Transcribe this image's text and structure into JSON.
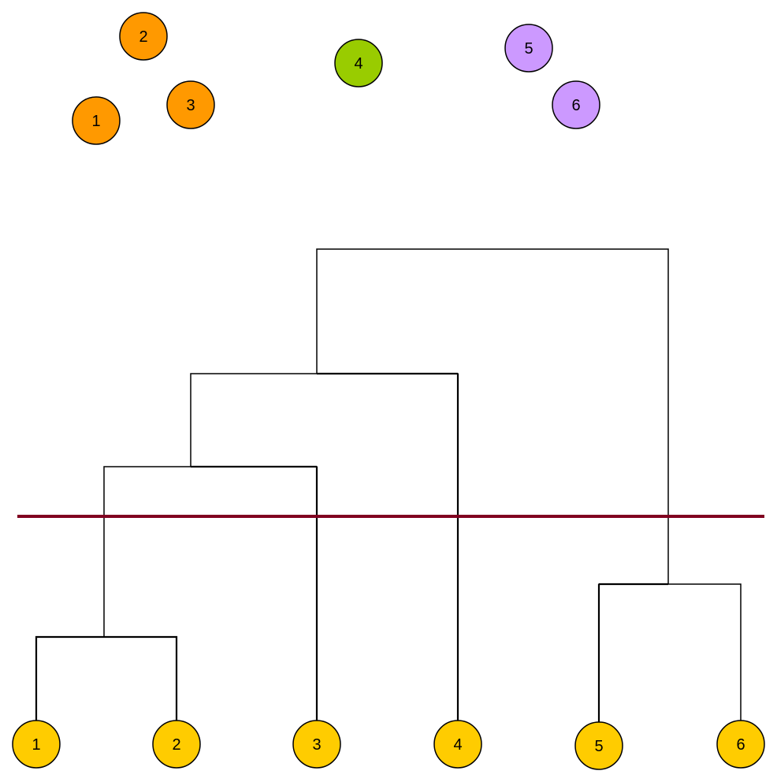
{
  "scatter_points": [
    {
      "label": "1",
      "color": "#FF9900",
      "cluster": "orange"
    },
    {
      "label": "2",
      "color": "#FF9900",
      "cluster": "orange"
    },
    {
      "label": "3",
      "color": "#FF9900",
      "cluster": "orange"
    },
    {
      "label": "4",
      "color": "#99CC00",
      "cluster": "green"
    },
    {
      "label": "5",
      "color": "#CC99FF",
      "cluster": "purple"
    },
    {
      "label": "6",
      "color": "#CC99FF",
      "cluster": "purple"
    }
  ],
  "dendrogram": {
    "leaves": [
      {
        "label": "1",
        "color": "#FFCC00"
      },
      {
        "label": "2",
        "color": "#FFCC00"
      },
      {
        "label": "3",
        "color": "#FFCC00"
      },
      {
        "label": "4",
        "color": "#FFCC00"
      },
      {
        "label": "5",
        "color": "#FFCC00"
      },
      {
        "label": "6",
        "color": "#FFCC00"
      }
    ],
    "merges": [
      {
        "children": [
          "leaf-1",
          "leaf-2"
        ],
        "id": "m12"
      },
      {
        "children": [
          "m12",
          "leaf-3"
        ],
        "id": "m123"
      },
      {
        "children": [
          "m123",
          "leaf-4"
        ],
        "id": "m1234"
      },
      {
        "children": [
          "leaf-5",
          "leaf-6"
        ],
        "id": "m56"
      },
      {
        "children": [
          "m1234",
          "m56"
        ],
        "id": "root"
      }
    ],
    "cut_line_color": "#800020"
  }
}
